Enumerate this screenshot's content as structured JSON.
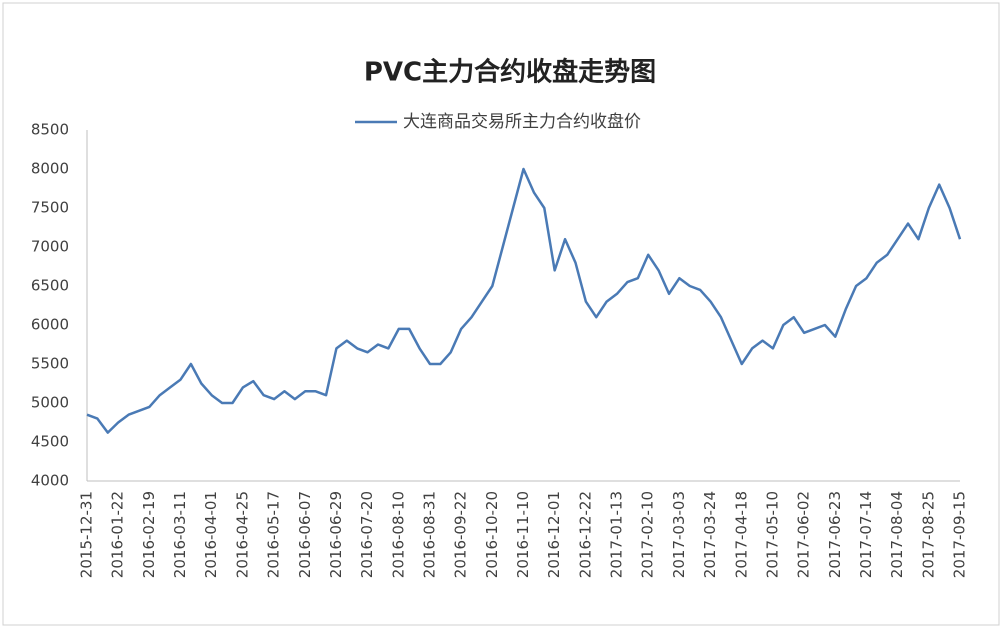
{
  "chart_data": {
    "type": "line",
    "title": "PVC主力合约收盘走势图",
    "categories": [
      "2015-12-31",
      null,
      null,
      "2016-01-22",
      null,
      null,
      "2016-02-19",
      null,
      null,
      "2016-03-11",
      null,
      null,
      "2016-04-01",
      null,
      null,
      "2016-04-25",
      null,
      null,
      "2016-05-17",
      null,
      null,
      "2016-06-07",
      null,
      null,
      "2016-06-29",
      null,
      null,
      "2016-07-20",
      null,
      null,
      "2016-08-10",
      null,
      null,
      "2016-08-31",
      null,
      null,
      "2016-09-22",
      null,
      null,
      "2016-10-20",
      null,
      null,
      "2016-11-10",
      null,
      null,
      "2016-12-01",
      null,
      null,
      "2016-12-22",
      null,
      null,
      "2017-01-13",
      null,
      null,
      "2017-02-10",
      null,
      null,
      "2017-03-03",
      null,
      null,
      "2017-03-24",
      null,
      null,
      "2017-04-18",
      null,
      null,
      "2017-05-10",
      null,
      null,
      "2017-06-02",
      null,
      null,
      "2017-06-23",
      null,
      null,
      "2017-07-14",
      null,
      null,
      "2017-08-04",
      null,
      null,
      "2017-08-25",
      null,
      null,
      "2017-09-15"
    ],
    "series": [
      {
        "name": "大连商品交易所主力合约收盘价",
        "color": "#4a7ab5",
        "values": [
          4850,
          4800,
          4620,
          4750,
          4850,
          4900,
          4950,
          5100,
          5200,
          5300,
          5500,
          5250,
          5100,
          5000,
          5000,
          5200,
          5280,
          5100,
          5050,
          5150,
          5050,
          5150,
          5150,
          5100,
          5700,
          5800,
          5700,
          5650,
          5750,
          5700,
          5950,
          5950,
          5700,
          5500,
          5500,
          5650,
          5950,
          6100,
          6300,
          6500,
          7000,
          7500,
          8000,
          7700,
          7500,
          6700,
          7100,
          6800,
          6300,
          6100,
          6300,
          6400,
          6550,
          6600,
          6900,
          6700,
          6400,
          6600,
          6500,
          6450,
          6300,
          6100,
          5800,
          5500,
          5700,
          5800,
          5700,
          6000,
          6100,
          5900,
          5950,
          6000,
          5850,
          6200,
          6500,
          6600,
          6800,
          6900,
          7100,
          7300,
          7100,
          7500,
          7800,
          7500,
          7100
        ]
      }
    ],
    "ylim": [
      4000,
      8500
    ],
    "yticks": [
      4000,
      4500,
      5000,
      5500,
      6000,
      6500,
      7000,
      7500,
      8000,
      8500
    ],
    "legend": "top",
    "grid": false
  }
}
